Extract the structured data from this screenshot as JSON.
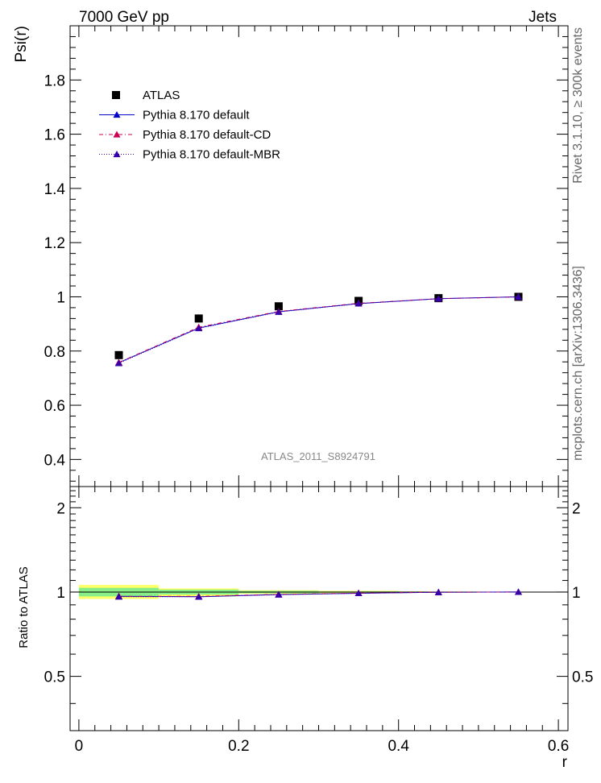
{
  "header": {
    "left": "7000 GeV pp",
    "right": "Jets"
  },
  "side_text": {
    "upper": "Rivet 3.1.10, ≥ 300k events",
    "lower": "mcplots.cern.ch [arXiv:1306.3436]"
  },
  "watermark": "ATLAS_2011_S8924791",
  "chart_data": [
    {
      "type": "line",
      "panel": "main",
      "ylabel": "Psi(r)",
      "xlabel": "",
      "xlim": [
        -0.011,
        0.612
      ],
      "ylim": [
        0.3,
        2.0
      ],
      "yticks": [
        0.4,
        0.6,
        0.8,
        1.0,
        1.2,
        1.4,
        1.6,
        1.8
      ],
      "ytick_labels": [
        "0.4",
        "0.6",
        "0.8",
        "1",
        "1.2",
        "1.4",
        "1.6",
        "1.8"
      ],
      "legend_position": "top-left",
      "x": [
        0.05,
        0.15,
        0.25,
        0.35,
        0.45,
        0.55
      ],
      "series": [
        {
          "name": "ATLAS",
          "style": "marker",
          "color": "#000000",
          "values": [
            0.785,
            0.92,
            0.965,
            0.985,
            0.995,
            1.0
          ]
        },
        {
          "name": "Pythia 8.170 default",
          "style": "solid",
          "color": "#0000cc",
          "values": [
            0.757,
            0.885,
            0.945,
            0.975,
            0.993,
            1.0
          ]
        },
        {
          "name": "Pythia 8.170 default-CD",
          "style": "dashdot",
          "color": "#cc0055",
          "values": [
            0.758,
            0.888,
            0.946,
            0.976,
            0.993,
            1.0
          ]
        },
        {
          "name": "Pythia 8.170 default-MBR",
          "style": "dotted",
          "color": "#3300aa",
          "values": [
            0.755,
            0.884,
            0.944,
            0.975,
            0.993,
            1.0
          ]
        }
      ]
    },
    {
      "type": "line",
      "panel": "ratio",
      "ylabel": "Ratio to ATLAS",
      "xlabel": "r",
      "xlim": [
        -0.011,
        0.612
      ],
      "ylim": [
        0.32,
        2.38
      ],
      "yticks": [
        0.5,
        1,
        2
      ],
      "ytick_labels": [
        "0.5",
        "1",
        "2"
      ],
      "xticks": [
        0,
        0.2,
        0.4,
        0.6
      ],
      "xtick_labels": [
        "0",
        "0.2",
        "0.4",
        "0.6"
      ],
      "reference_line": 1.0,
      "uncertainty_bands": {
        "edges": [
          0.0,
          0.1,
          0.2,
          0.3,
          0.4,
          0.5,
          0.6
        ],
        "inner_color": "#88ee88",
        "outer_color": "#ffff66",
        "inner": [
          [
            0.965,
            1.035
          ],
          [
            0.98,
            1.02
          ],
          [
            0.99,
            1.01
          ],
          [
            0.995,
            1.005
          ],
          [
            0.997,
            1.003
          ],
          [
            0.999,
            1.001
          ]
        ],
        "outer": [
          [
            0.945,
            1.06
          ],
          [
            0.965,
            1.03
          ],
          [
            0.985,
            1.015
          ],
          [
            0.99,
            1.01
          ],
          [
            0.995,
            1.005
          ],
          [
            0.998,
            1.002
          ]
        ]
      },
      "x": [
        0.05,
        0.15,
        0.25,
        0.35,
        0.45,
        0.55
      ],
      "series": [
        {
          "name": "Pythia 8.170 default",
          "style": "solid",
          "color": "#0000cc",
          "values": [
            0.965,
            0.962,
            0.98,
            0.99,
            0.998,
            1.0
          ]
        },
        {
          "name": "Pythia 8.170 default-CD",
          "style": "dashdot",
          "color": "#cc0055",
          "values": [
            0.966,
            0.965,
            0.981,
            0.991,
            0.998,
            1.0
          ]
        },
        {
          "name": "Pythia 8.170 default-MBR",
          "style": "dotted",
          "color": "#3300aa",
          "values": [
            0.962,
            0.961,
            0.978,
            0.99,
            0.998,
            1.0
          ]
        }
      ]
    }
  ]
}
